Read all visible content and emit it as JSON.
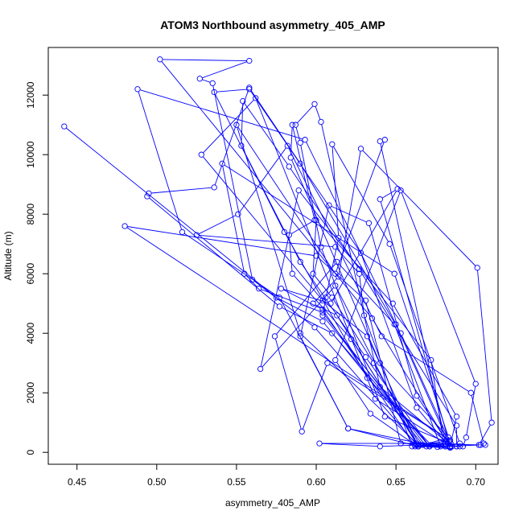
{
  "chart_data": {
    "type": "line",
    "title": "ATOM3 Northbound asymmetry_405_AMP",
    "xlabel": "asymmetry_405_AMP",
    "ylabel": "Altitude (m)",
    "xlim": [
      0.432,
      0.714
    ],
    "ylim": [
      -400,
      13600
    ],
    "x_ticks": [
      0.45,
      0.5,
      0.55,
      0.6,
      0.65,
      0.7
    ],
    "x_tick_labels": [
      "0.45",
      "0.50",
      "0.55",
      "0.60",
      "0.65",
      "0.70"
    ],
    "y_ticks": [
      0,
      2000,
      4000,
      6000,
      8000,
      10000,
      12000
    ],
    "y_tick_labels": [
      "0",
      "2000",
      "4000",
      "6000",
      "8000",
      "10000",
      "12000"
    ],
    "grid": false,
    "legend": "none",
    "line_color": "#0000ff",
    "marker": "open-circle",
    "series": [
      {
        "values": [
          [
            0.442,
            10950
          ],
          [
            0.575,
            5200
          ],
          [
            0.604,
            4400
          ],
          [
            0.667,
            250
          ],
          [
            0.684,
            180
          ],
          [
            0.635,
            4500
          ],
          [
            0.502,
            13200
          ],
          [
            0.558,
            13150
          ],
          [
            0.527,
            12550
          ],
          [
            0.535,
            12400
          ],
          [
            0.56,
            5800
          ],
          [
            0.599,
            4200
          ],
          [
            0.664,
            200
          ],
          [
            0.684,
            150
          ],
          [
            0.663,
            1500
          ],
          [
            0.628,
            6700
          ],
          [
            0.558,
            12200
          ],
          [
            0.536,
            12100
          ],
          [
            0.58,
            7400
          ],
          [
            0.632,
            2500
          ],
          [
            0.672,
            250
          ],
          [
            0.684,
            200
          ],
          [
            0.65,
            4300
          ],
          [
            0.593,
            10500
          ],
          [
            0.488,
            12200
          ],
          [
            0.516,
            7400
          ],
          [
            0.577,
            5200
          ],
          [
            0.62,
            800
          ],
          [
            0.676,
            180
          ],
          [
            0.681,
            350
          ],
          [
            0.64,
            10450
          ],
          [
            0.643,
            10500
          ],
          [
            0.612,
            6000
          ],
          [
            0.55,
            11000
          ],
          [
            0.59,
            4000
          ],
          [
            0.663,
            300
          ],
          [
            0.684,
            200
          ],
          [
            0.64,
            8500
          ],
          [
            0.651,
            8850
          ],
          [
            0.609,
            5000
          ],
          [
            0.578,
            5500
          ],
          [
            0.604,
            4800
          ],
          [
            0.662,
            200
          ],
          [
            0.685,
            200
          ],
          [
            0.64,
            2200
          ],
          [
            0.603,
            11100
          ],
          [
            0.599,
            11700
          ],
          [
            0.587,
            11000
          ],
          [
            0.59,
            10400
          ],
          [
            0.603,
            6900
          ],
          [
            0.643,
            1200
          ],
          [
            0.688,
            200
          ],
          [
            0.64,
            3000
          ],
          [
            0.584,
            9900
          ],
          [
            0.585,
            11000
          ],
          [
            0.599,
            7800
          ],
          [
            0.583,
            7300
          ],
          [
            0.585,
            6000
          ],
          [
            0.622,
            3800
          ],
          [
            0.664,
            250
          ],
          [
            0.688,
            200
          ],
          [
            0.688,
            900
          ],
          [
            0.627,
            6150
          ],
          [
            0.583,
            9600
          ],
          [
            0.554,
            11800
          ],
          [
            0.553,
            10300
          ],
          [
            0.59,
            6400
          ],
          [
            0.631,
            3200
          ],
          [
            0.671,
            200
          ],
          [
            0.685,
            200
          ],
          [
            0.653,
            4000
          ],
          [
            0.59,
            9700
          ],
          [
            0.558,
            12250
          ],
          [
            0.536,
            8900
          ],
          [
            0.495,
            8700
          ],
          [
            0.494,
            8600
          ],
          [
            0.577,
            4900
          ],
          [
            0.61,
            4000
          ],
          [
            0.671,
            200
          ],
          [
            0.69,
            200
          ],
          [
            0.69,
            300
          ],
          [
            0.646,
            7000
          ],
          [
            0.61,
            10350
          ],
          [
            0.614,
            7200
          ],
          [
            0.606,
            5200
          ],
          [
            0.604,
            4600
          ],
          [
            0.671,
            200
          ],
          [
            0.684,
            200
          ],
          [
            0.663,
            1900
          ],
          [
            0.633,
            7700
          ],
          [
            0.608,
            8300
          ],
          [
            0.59,
            3900
          ],
          [
            0.62,
            800
          ],
          [
            0.664,
            200
          ],
          [
            0.683,
            500
          ],
          [
            0.649,
            6000
          ],
          [
            0.541,
            9700
          ],
          [
            0.555,
            6000
          ],
          [
            0.564,
            5500
          ],
          [
            0.604,
            4700
          ],
          [
            0.669,
            200
          ],
          [
            0.684,
            200
          ],
          [
            0.688,
            1200
          ],
          [
            0.648,
            5000
          ],
          [
            0.6,
            7800
          ],
          [
            0.598,
            6000
          ],
          [
            0.61,
            5200
          ],
          [
            0.636,
            3000
          ],
          [
            0.665,
            250
          ],
          [
            0.684,
            200
          ],
          [
            0.637,
            1800
          ],
          [
            0.562,
            11900
          ],
          [
            0.528,
            10000
          ],
          [
            0.604,
            5100
          ],
          [
            0.632,
            3900
          ],
          [
            0.664,
            200
          ],
          [
            0.681,
            200
          ],
          [
            0.692,
            200
          ],
          [
            0.694,
            500
          ],
          [
            0.7,
            2300
          ],
          [
            0.653,
            8800
          ],
          [
            0.612,
            3100
          ],
          [
            0.634,
            1300
          ],
          [
            0.662,
            250
          ],
          [
            0.681,
            200
          ],
          [
            0.702,
            250
          ],
          [
            0.71,
            1000
          ],
          [
            0.701,
            6200
          ],
          [
            0.628,
            10200
          ],
          [
            0.614,
            5900
          ],
          [
            0.598,
            5000
          ],
          [
            0.613,
            4600
          ],
          [
            0.664,
            200
          ],
          [
            0.681,
            200
          ],
          [
            0.703,
            250
          ],
          [
            0.705,
            300
          ],
          [
            0.697,
            2000
          ],
          [
            0.641,
            3900
          ],
          [
            0.582,
            10300
          ],
          [
            0.551,
            8000
          ],
          [
            0.525,
            7300
          ],
          [
            0.612,
            6900
          ],
          [
            0.627,
            6000
          ],
          [
            0.63,
            4600
          ],
          [
            0.66,
            200
          ],
          [
            0.68,
            250
          ],
          [
            0.672,
            3100
          ],
          [
            0.589,
            8800
          ],
          [
            0.565,
            2800
          ],
          [
            0.612,
            5600
          ],
          [
            0.663,
            250
          ],
          [
            0.678,
            200
          ],
          [
            0.649,
            4300
          ],
          [
            0.613,
            6400
          ],
          [
            0.574,
            3900
          ],
          [
            0.591,
            700
          ],
          [
            0.607,
            3000
          ],
          [
            0.684,
            400
          ],
          [
            0.681,
            300
          ],
          [
            0.602,
            300
          ],
          [
            0.64,
            200
          ],
          [
            0.665,
            250
          ],
          [
            0.684,
            400
          ],
          [
            0.48,
            7600
          ],
          [
            0.6,
            6600
          ],
          [
            0.631,
            5100
          ],
          [
            0.653,
            300
          ],
          [
            0.706,
            250
          ]
        ]
      }
    ]
  }
}
